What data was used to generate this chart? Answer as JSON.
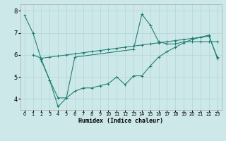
{
  "xlabel": "Humidex (Indice chaleur)",
  "bg_color": "#cce8e8",
  "grid_color": "#b8d8d8",
  "line_color": "#1a7a6e",
  "xlim": [
    -0.5,
    23.5
  ],
  "ylim": [
    3.5,
    8.3
  ],
  "yticks": [
    4,
    5,
    6,
    7,
    8
  ],
  "xticks": [
    0,
    1,
    2,
    3,
    4,
    5,
    6,
    7,
    8,
    9,
    10,
    11,
    12,
    13,
    14,
    15,
    16,
    17,
    18,
    19,
    20,
    21,
    22,
    23
  ],
  "series1_x": [
    0,
    1,
    2,
    3,
    4,
    5,
    6,
    13,
    14,
    15,
    16,
    17,
    18,
    19,
    20,
    21,
    22,
    23
  ],
  "series1_y": [
    7.8,
    7.0,
    5.8,
    4.85,
    3.65,
    4.05,
    5.9,
    6.25,
    7.85,
    7.35,
    6.6,
    6.5,
    6.5,
    6.6,
    6.6,
    6.6,
    6.6,
    6.6
  ],
  "series2_x": [
    1,
    2,
    3,
    4,
    5,
    6,
    7,
    8,
    9,
    10,
    11,
    12,
    13,
    14,
    15,
    16,
    17,
    18,
    19,
    20,
    21,
    22,
    23
  ],
  "series2_y": [
    6.0,
    5.85,
    5.9,
    5.95,
    6.0,
    6.05,
    6.1,
    6.15,
    6.2,
    6.25,
    6.3,
    6.35,
    6.4,
    6.45,
    6.5,
    6.55,
    6.6,
    6.65,
    6.7,
    6.75,
    6.8,
    6.85,
    5.9
  ],
  "series3_x": [
    2,
    3,
    4,
    5,
    6,
    7,
    8,
    9,
    10,
    11,
    12,
    13,
    14,
    15,
    16,
    17,
    18,
    19,
    20,
    21,
    22,
    23
  ],
  "series3_y": [
    5.75,
    4.85,
    4.05,
    4.05,
    4.35,
    4.5,
    4.5,
    4.6,
    4.7,
    5.0,
    4.65,
    5.05,
    5.05,
    5.5,
    5.9,
    6.15,
    6.35,
    6.55,
    6.7,
    6.8,
    6.9,
    5.85
  ]
}
